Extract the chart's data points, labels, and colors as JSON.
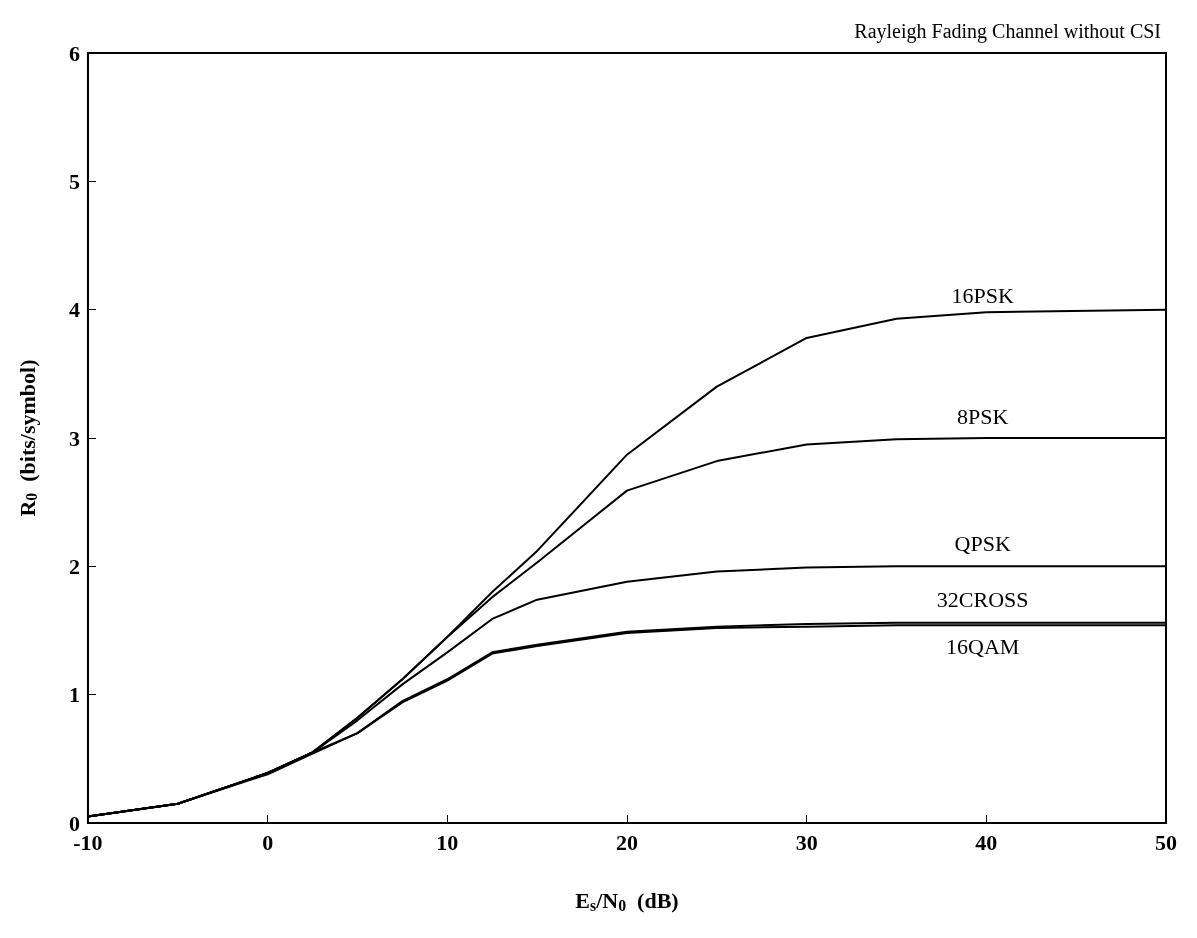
{
  "chart_data": {
    "type": "line",
    "title": "Rayleigh Fading Channel without CSI",
    "xlabel": "E$_{s}$/N$_{0}$  (dB)",
    "ylabel": "R$_{0}$  (bits/symbol)",
    "xlim": [
      -10,
      50
    ],
    "xticks": [
      -10,
      0,
      10,
      20,
      30,
      40,
      50
    ],
    "ylim": [
      0,
      6
    ],
    "yticks": [
      0,
      1,
      2,
      3,
      4,
      5,
      6
    ],
    "grid": false,
    "legend": false,
    "marker": "none",
    "line_style": "solid",
    "series": [
      {
        "name": "16PSK",
        "color": "#000000",
        "x": [
          -10,
          -5,
          0,
          2.5,
          5,
          7.5,
          10,
          12.5,
          15,
          20,
          25,
          30,
          35,
          40,
          50
        ],
        "values": [
          0.05,
          0.15,
          0.39,
          0.55,
          0.82,
          1.12,
          1.45,
          1.8,
          2.12,
          2.87,
          3.4,
          3.78,
          3.93,
          3.98,
          4.0
        ]
      },
      {
        "name": "8PSK",
        "color": "#000000",
        "x": [
          -10,
          -5,
          0,
          2.5,
          5,
          7.5,
          10,
          12.5,
          15,
          20,
          25,
          30,
          35,
          40,
          50
        ],
        "values": [
          0.05,
          0.15,
          0.39,
          0.55,
          0.82,
          1.12,
          1.45,
          1.76,
          2.03,
          2.59,
          2.82,
          2.95,
          2.99,
          3.0,
          3.0
        ]
      },
      {
        "name": "QPSK",
        "color": "#000000",
        "x": [
          -10,
          -5,
          0,
          2.5,
          5,
          7.5,
          10,
          12.5,
          15,
          20,
          25,
          30,
          35,
          40,
          50
        ],
        "values": [
          0.05,
          0.15,
          0.39,
          0.55,
          0.8,
          1.08,
          1.33,
          1.59,
          1.74,
          1.88,
          1.96,
          1.99,
          2.0,
          2.0,
          2.0
        ]
      },
      {
        "name": "32CROSS",
        "color": "#000000",
        "x": [
          -10,
          -5,
          0,
          2.5,
          5,
          7.5,
          10,
          12.5,
          15,
          20,
          25,
          30,
          35,
          40,
          50
        ],
        "values": [
          0.05,
          0.15,
          0.39,
          0.55,
          0.7,
          0.95,
          1.12,
          1.33,
          1.39,
          1.49,
          1.53,
          1.55,
          1.56,
          1.56,
          1.56
        ]
      },
      {
        "name": "16QAM",
        "color": "#000000",
        "x": [
          -10,
          -5,
          0,
          2.5,
          5,
          7.5,
          10,
          12.5,
          15,
          20,
          25,
          30,
          35,
          40,
          50
        ],
        "values": [
          0.05,
          0.15,
          0.38,
          0.54,
          0.7,
          0.94,
          1.11,
          1.32,
          1.38,
          1.48,
          1.52,
          1.53,
          1.54,
          1.54,
          1.54
        ]
      }
    ]
  }
}
